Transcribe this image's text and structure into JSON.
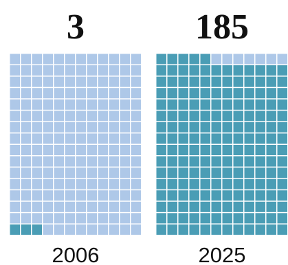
{
  "chart_data": {
    "type": "waffle",
    "categories": [
      "2006",
      "2025"
    ],
    "values": [
      3,
      185
    ],
    "colors": {
      "filled": "#4a9db5",
      "empty": "#aec8e8"
    }
  }
}
